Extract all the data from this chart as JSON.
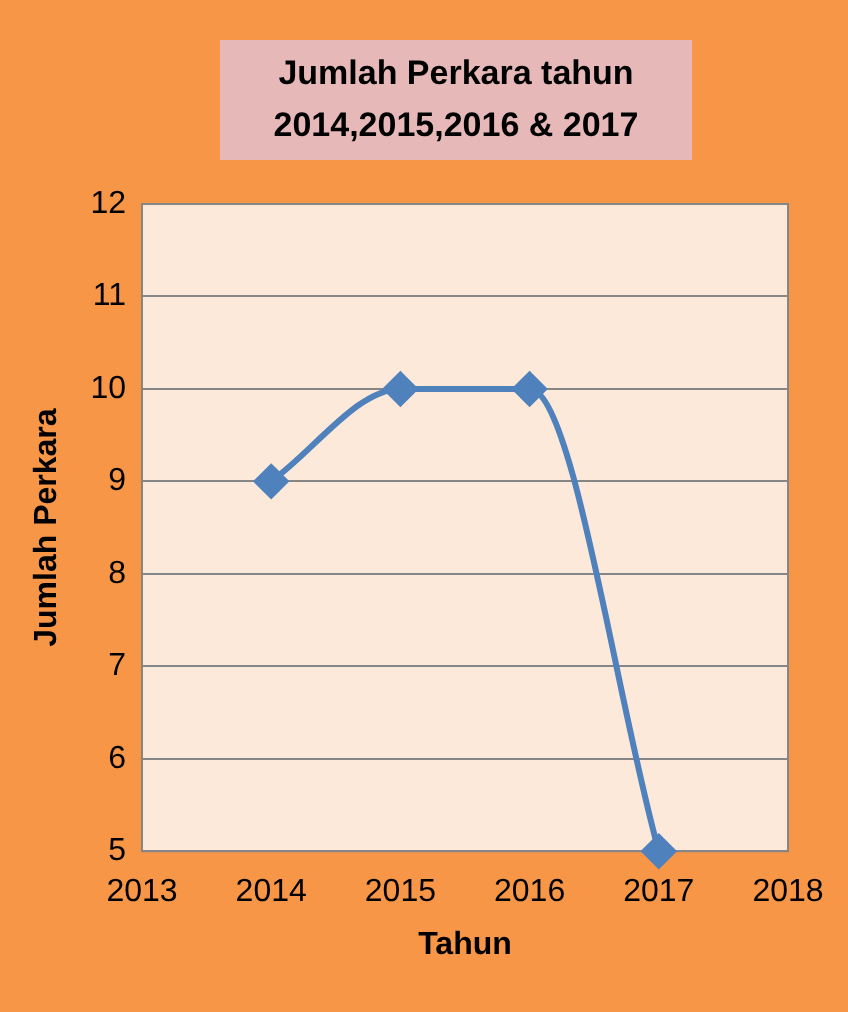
{
  "chart_data": {
    "type": "line",
    "title": "Jumlah Perkara tahun 2014,2015,2016 & 2017",
    "xlabel": "Tahun",
    "ylabel": "Jumlah Perkara",
    "x": [
      2014,
      2015,
      2016,
      2017
    ],
    "series": [
      {
        "color": "#4f81bd",
        "values": [
          9,
          10,
          10,
          5
        ]
      }
    ],
    "xlim": [
      2013,
      2018
    ],
    "xticks": [
      2013,
      2014,
      2015,
      2016,
      2017,
      2018
    ],
    "ylim": [
      5,
      12
    ],
    "yticks": [
      5,
      6,
      7,
      8,
      9,
      10,
      11,
      12
    ],
    "grid": "y",
    "legend": false,
    "marker": "diamond",
    "line_style": "solid"
  }
}
